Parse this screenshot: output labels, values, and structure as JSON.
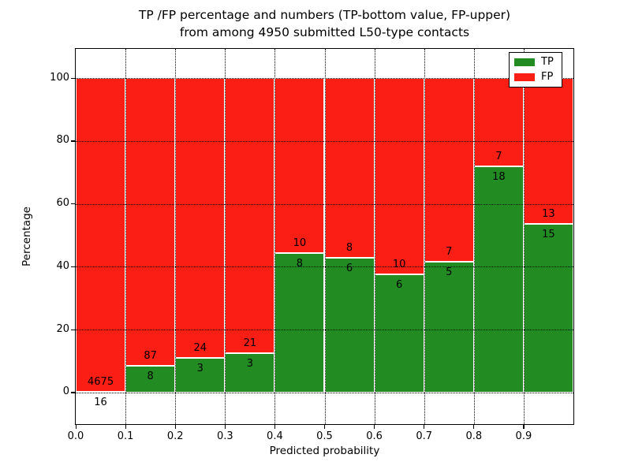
{
  "chart_data": {
    "type": "bar",
    "stacked": true,
    "title_line1": "TP /FP percentage and numbers (TP-bottom value, FP-upper)",
    "title_line2": "from among 4950 submitted L50-type contacts",
    "xlabel": "Predicted probability",
    "ylabel": "Percentage",
    "bin_edges": [
      0.0,
      0.1,
      0.2,
      0.3,
      0.4,
      0.5,
      0.6,
      0.7,
      0.8,
      0.9,
      1.0
    ],
    "series": [
      {
        "name": "TP",
        "color": "#228b22",
        "counts": [
          16,
          8,
          3,
          3,
          8,
          6,
          6,
          5,
          18,
          15
        ],
        "percent": [
          0.34,
          8.42,
          11.11,
          12.5,
          44.44,
          42.86,
          37.5,
          41.67,
          72.0,
          53.57
        ]
      },
      {
        "name": "FP",
        "color": "#fa1e14",
        "counts": [
          4675,
          87,
          24,
          21,
          10,
          8,
          10,
          7,
          7,
          13
        ],
        "percent": [
          99.66,
          91.58,
          88.89,
          87.5,
          55.56,
          57.14,
          62.5,
          58.33,
          28.0,
          46.43
        ]
      }
    ],
    "x_ticks": [
      "0.0",
      "0.1",
      "0.2",
      "0.3",
      "0.4",
      "0.5",
      "0.6",
      "0.7",
      "0.8",
      "0.9"
    ],
    "x_tick_values": [
      0.0,
      0.1,
      0.2,
      0.3,
      0.4,
      0.5,
      0.6,
      0.7,
      0.8,
      0.9
    ],
    "y_ticks": [
      "0",
      "20",
      "40",
      "60",
      "80",
      "100"
    ],
    "y_tick_values": [
      0,
      20,
      40,
      60,
      80,
      100
    ],
    "xlim": [
      0.0,
      1.0
    ],
    "ylim": [
      -10.05,
      109.3
    ],
    "grid": "dotted",
    "legend": {
      "position": "upper right",
      "entries": [
        "TP",
        "FP"
      ]
    }
  }
}
